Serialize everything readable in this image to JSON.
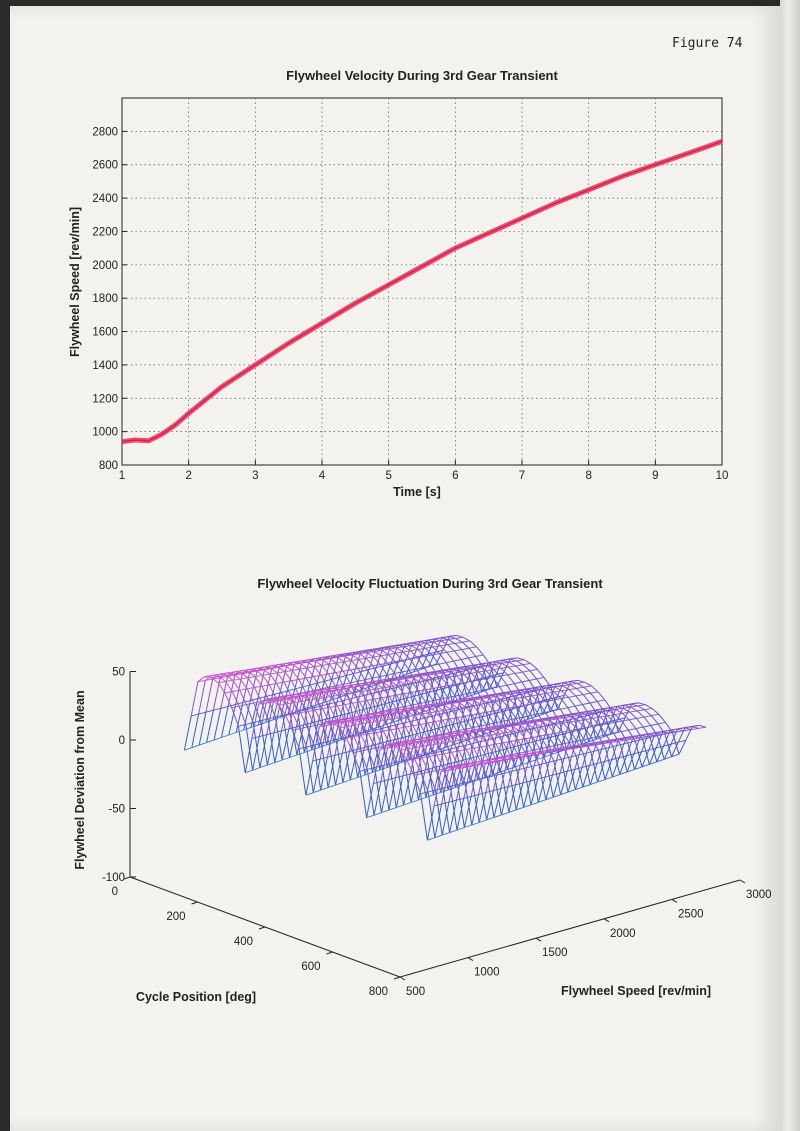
{
  "page": {
    "figure_label": "Figure 74"
  },
  "chart_data": [
    {
      "type": "line",
      "title": "Flywheel Velocity During 3rd Gear Transient",
      "xlabel": "Time [s]",
      "ylabel": "Flywheel Speed [rev/min]",
      "xlim": [
        1,
        10
      ],
      "ylim": [
        800,
        3000
      ],
      "xticks": [
        1,
        2,
        3,
        4,
        5,
        6,
        7,
        8,
        9,
        10
      ],
      "yticks": [
        800,
        1000,
        1200,
        1400,
        1600,
        1800,
        2000,
        2200,
        2400,
        2600,
        2800
      ],
      "grid": true,
      "series": [
        {
          "name": "Flywheel speed",
          "color": "#e8345a",
          "x": [
            1.0,
            1.2,
            1.4,
            1.6,
            1.8,
            2.0,
            2.5,
            3.0,
            3.5,
            4.0,
            4.5,
            5.0,
            5.5,
            6.0,
            6.5,
            7.0,
            7.5,
            8.0,
            8.5,
            9.0,
            9.5,
            10.0
          ],
          "y": [
            940,
            950,
            945,
            985,
            1040,
            1110,
            1270,
            1400,
            1530,
            1650,
            1770,
            1880,
            1990,
            2100,
            2190,
            2280,
            2370,
            2450,
            2530,
            2600,
            2670,
            2740
          ]
        }
      ]
    },
    {
      "type": "surface",
      "title": "Flywheel Velocity Fluctuation During 3rd Gear Transient",
      "xlabel": "Cycle Position [deg]",
      "ylabel": "Flywheel Speed [rev/min]",
      "zlabel": "Flywheel Deviation from Mean",
      "xlim": [
        0,
        800
      ],
      "ylim": [
        500,
        3000
      ],
      "zlim": [
        -100,
        50
      ],
      "xticks": [
        0,
        200,
        400,
        600,
        800
      ],
      "yticks": [
        500,
        1000,
        1500,
        2000,
        2500,
        3000
      ],
      "zticks": [
        -100,
        -50,
        0,
        50
      ],
      "colormap": [
        "#ffff33",
        "#33cccc",
        "#3355cc",
        "#ff55cc"
      ]
    }
  ]
}
